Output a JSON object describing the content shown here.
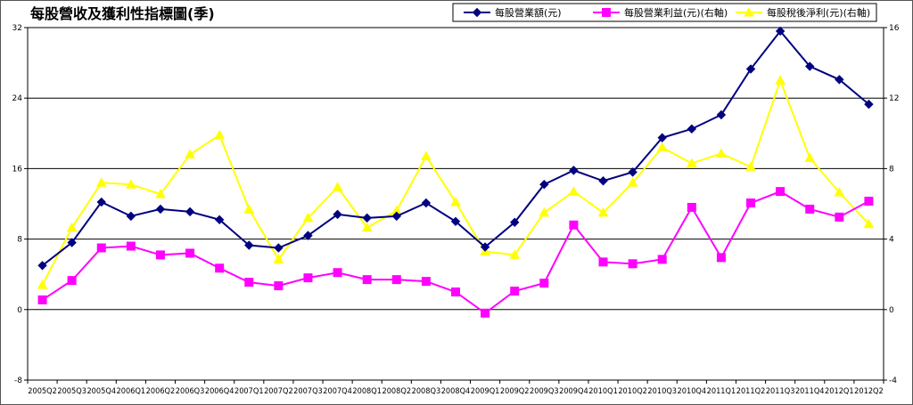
{
  "chart_data": {
    "type": "line",
    "title": "每股營收及獲利性指標圖(季)",
    "categories": [
      "2005Q2",
      "2005Q3",
      "2005Q4",
      "2006Q1",
      "2006Q2",
      "2006Q3",
      "2006Q4",
      "2007Q1",
      "2007Q2",
      "2007Q3",
      "2007Q4",
      "2008Q1",
      "2008Q2",
      "2008Q3",
      "2008Q4",
      "2009Q1",
      "2009Q2",
      "2009Q3",
      "2009Q4",
      "2010Q1",
      "2010Q2",
      "2010Q3",
      "2010Q4",
      "2011Q1",
      "2011Q2",
      "2011Q3",
      "2011Q4",
      "2012Q1",
      "2012Q2"
    ],
    "left_axis": {
      "min": -8,
      "max": 32,
      "ticks": [
        "-8",
        "0",
        "8",
        "16",
        "24",
        "32"
      ]
    },
    "right_axis": {
      "min": -4,
      "max": 16,
      "ticks": [
        "-4",
        "0",
        "4",
        "8",
        "12",
        "16"
      ]
    },
    "grid": {
      "horizontal": true,
      "values": [
        8,
        16,
        24
      ]
    },
    "legend_position": "top-right",
    "series": [
      {
        "name": "每股營業額(元)",
        "axis": "left",
        "color": "#000080",
        "marker": "diamond",
        "values": [
          5.0,
          7.6,
          12.2,
          10.6,
          11.4,
          11.1,
          10.2,
          7.3,
          7.0,
          8.4,
          10.8,
          10.4,
          10.6,
          12.1,
          10.0,
          7.1,
          9.9,
          14.2,
          15.8,
          14.6,
          15.6,
          19.5,
          20.5,
          22.1,
          27.3,
          31.6,
          27.6,
          26.1,
          23.3
        ]
      },
      {
        "name": "每股營業利益(元)(右軸)",
        "axis": "right",
        "color": "#ff00ff",
        "marker": "square",
        "values": [
          0.55,
          1.65,
          3.5,
          3.6,
          3.1,
          3.2,
          2.35,
          1.55,
          1.35,
          1.8,
          2.1,
          1.7,
          1.7,
          1.6,
          1.0,
          -0.2,
          1.05,
          1.5,
          4.8,
          2.7,
          2.6,
          2.85,
          5.8,
          2.95,
          6.05,
          6.7,
          5.7,
          5.25,
          6.15
        ]
      },
      {
        "name": "每股稅後淨利(元)(右軸)",
        "axis": "right",
        "color": "#ffff00",
        "marker": "triangle",
        "values": [
          1.4,
          4.65,
          7.2,
          7.1,
          6.55,
          8.8,
          9.9,
          5.7,
          2.85,
          5.2,
          6.95,
          4.65,
          5.6,
          8.7,
          6.1,
          3.3,
          3.1,
          5.5,
          6.7,
          5.5,
          7.2,
          9.2,
          8.3,
          8.85,
          8.1,
          13.0,
          8.6,
          6.65,
          4.85
        ]
      }
    ]
  }
}
